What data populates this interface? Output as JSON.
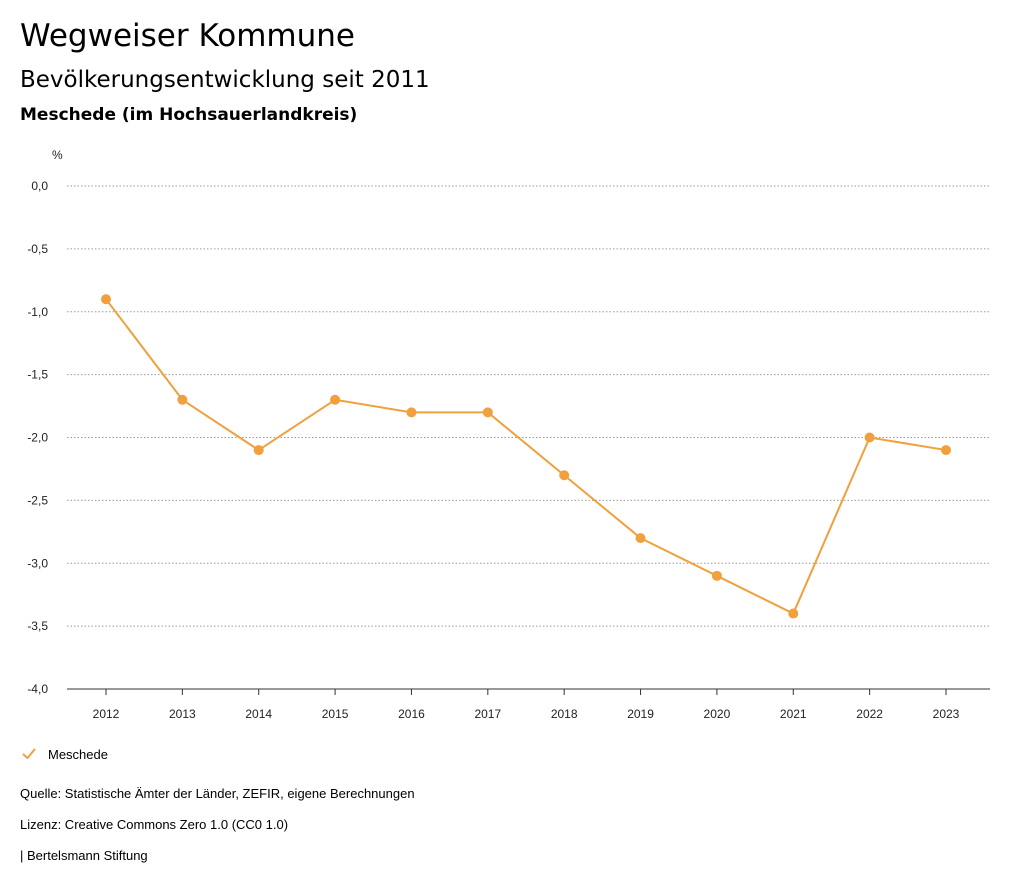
{
  "header": {
    "title": "Wegweiser Kommune",
    "subtitle": "Bevölkerungsentwicklung seit 2011",
    "region": "Meschede (im Hochsauerlandkreis)"
  },
  "chart_data": {
    "type": "line",
    "title": "Bevölkerungsentwicklung seit 2011",
    "subtitle": "Meschede (im Hochsauerlandkreis)",
    "ylabel": "%",
    "xlabel": "",
    "x": [
      "2012",
      "2013",
      "2014",
      "2015",
      "2016",
      "2017",
      "2018",
      "2019",
      "2020",
      "2021",
      "2022",
      "2023"
    ],
    "series": [
      {
        "name": "Meschede",
        "values": [
          -0.9,
          -1.7,
          -2.1,
          -1.7,
          -1.8,
          -1.8,
          -2.3,
          -2.8,
          -3.1,
          -3.4,
          -2.0,
          -2.1
        ],
        "color": "#F0A03C"
      }
    ],
    "yticks": [
      "0,0",
      "-0,5",
      "-1,0",
      "-1,5",
      "-2,0",
      "-2,5",
      "-3,0",
      "-3,5",
      "-4,0"
    ],
    "ytick_values": [
      0.0,
      -0.5,
      -1.0,
      -1.5,
      -2.0,
      -2.5,
      -3.0,
      -3.5,
      -4.0
    ],
    "ylim": [
      -4.0,
      0.0
    ],
    "grid": "horizontal dotted",
    "legend": "bottom-left"
  },
  "legend": {
    "label": "Meschede"
  },
  "footer": {
    "source": "Quelle: Statistische Ämter der Länder, ZEFIR, eigene Berechnungen",
    "license": "Lizenz: Creative Commons Zero 1.0 (CC0 1.0)",
    "brand": "| Bertelsmann Stiftung"
  }
}
